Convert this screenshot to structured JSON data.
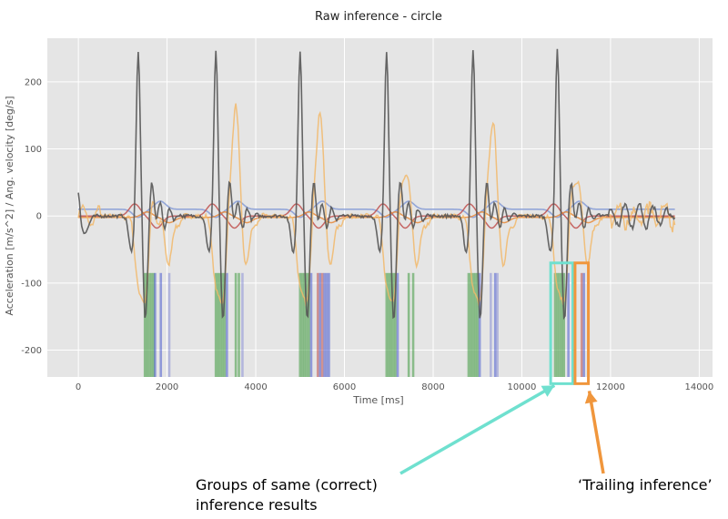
{
  "chart_data": {
    "type": "line",
    "title": "Raw inference - circle",
    "xlabel": "Time [ms]",
    "ylabel": "Acceleration [m/s^2]   /   Ang. velocity [deg/s]",
    "xlim": [
      -700,
      14300
    ],
    "ylim": [
      -240,
      265
    ],
    "xticks": [
      0,
      2000,
      4000,
      6000,
      8000,
      10000,
      12000,
      14000
    ],
    "yticks": [
      -200,
      -100,
      0,
      100,
      200
    ],
    "grid": true,
    "background": "#e5e5e5",
    "gesture_peaks_x": [
      1350,
      3100,
      5000,
      6950,
      8900,
      10800
    ],
    "series": [
      {
        "color": "#555555",
        "style": "gray",
        "peaks": [
          250,
          250,
          250,
          250,
          250,
          250
        ]
      },
      {
        "color": "#f2b96a",
        "style": "yellow",
        "peaks": [
          35,
          215,
          205,
          110,
          190,
          100
        ]
      },
      {
        "color": "#8a9fd6",
        "style": "blue"
      },
      {
        "color": "#c0504d",
        "style": "red"
      },
      {
        "color": "#e88a3a",
        "style": "orange"
      }
    ],
    "inference_bands": [
      {
        "x": 1500,
        "color": "#3f9a3f"
      },
      {
        "x": 1550,
        "color": "#3f9a3f"
      },
      {
        "x": 1600,
        "color": "#3f9a3f"
      },
      {
        "x": 1650,
        "color": "#3f9a3f"
      },
      {
        "x": 1700,
        "color": "#3f9a3f"
      },
      {
        "x": 1730,
        "color": "#4a5bd0"
      },
      {
        "x": 1860,
        "color": "#4a5bd0"
      },
      {
        "x": 2050,
        "color": "#8a8fd6"
      },
      {
        "x": 3100,
        "color": "#3f9a3f"
      },
      {
        "x": 3150,
        "color": "#3f9a3f"
      },
      {
        "x": 3200,
        "color": "#3f9a3f"
      },
      {
        "x": 3250,
        "color": "#3f9a3f"
      },
      {
        "x": 3300,
        "color": "#3f9a3f"
      },
      {
        "x": 3350,
        "color": "#4a5bd0"
      },
      {
        "x": 3550,
        "color": "#3f9a3f"
      },
      {
        "x": 3620,
        "color": "#3f9a3f"
      },
      {
        "x": 3700,
        "color": "#8a8fd6"
      },
      {
        "x": 5000,
        "color": "#3f9a3f"
      },
      {
        "x": 5050,
        "color": "#3f9a3f"
      },
      {
        "x": 5100,
        "color": "#3f9a3f"
      },
      {
        "x": 5150,
        "color": "#3f9a3f"
      },
      {
        "x": 5200,
        "color": "#3f9a3f"
      },
      {
        "x": 5250,
        "color": "#4a5bd0"
      },
      {
        "x": 5400,
        "color": "#c0504d"
      },
      {
        "x": 5450,
        "color": "#4a5bd0"
      },
      {
        "x": 5500,
        "color": "#c0504d"
      },
      {
        "x": 5550,
        "color": "#4a5bd0"
      },
      {
        "x": 5600,
        "color": "#4a5bd0"
      },
      {
        "x": 5650,
        "color": "#4a5bd0"
      },
      {
        "x": 6950,
        "color": "#3f9a3f"
      },
      {
        "x": 7000,
        "color": "#3f9a3f"
      },
      {
        "x": 7050,
        "color": "#3f9a3f"
      },
      {
        "x": 7100,
        "color": "#3f9a3f"
      },
      {
        "x": 7150,
        "color": "#3f9a3f"
      },
      {
        "x": 7200,
        "color": "#4a5bd0"
      },
      {
        "x": 7450,
        "color": "#3f9a3f"
      },
      {
        "x": 7550,
        "color": "#3f9a3f"
      },
      {
        "x": 8800,
        "color": "#3f9a3f"
      },
      {
        "x": 8850,
        "color": "#3f9a3f"
      },
      {
        "x": 8900,
        "color": "#3f9a3f"
      },
      {
        "x": 8950,
        "color": "#3f9a3f"
      },
      {
        "x": 9000,
        "color": "#3f9a3f"
      },
      {
        "x": 9050,
        "color": "#4a5bd0"
      },
      {
        "x": 9300,
        "color": "#8a8fd6"
      },
      {
        "x": 9400,
        "color": "#4a5bd0"
      },
      {
        "x": 9450,
        "color": "#8a8fd6"
      },
      {
        "x": 10750,
        "color": "#3f9a3f"
      },
      {
        "x": 10800,
        "color": "#3f9a3f"
      },
      {
        "x": 10850,
        "color": "#3f9a3f"
      },
      {
        "x": 10900,
        "color": "#3f9a3f"
      },
      {
        "x": 10950,
        "color": "#3f9a3f"
      },
      {
        "x": 11050,
        "color": "#4a5bd0"
      },
      {
        "x": 11350,
        "color": "#c0504d"
      },
      {
        "x": 11400,
        "color": "#4a5bd0"
      }
    ],
    "inference_band_y": [
      -240,
      -85
    ]
  },
  "annotations": {
    "groups_text_line1": "Groups of same (correct)",
    "groups_text_line2": "inference results",
    "trailing_text": "‘Trailing inference’",
    "groups_box_color": "#6fe0cf",
    "trailing_box_color": "#f0963c",
    "groups_box_x": [
      10650,
      11150
    ],
    "trailing_box_x": [
      11200,
      11500
    ],
    "boxes_y": [
      -250,
      -70
    ]
  }
}
